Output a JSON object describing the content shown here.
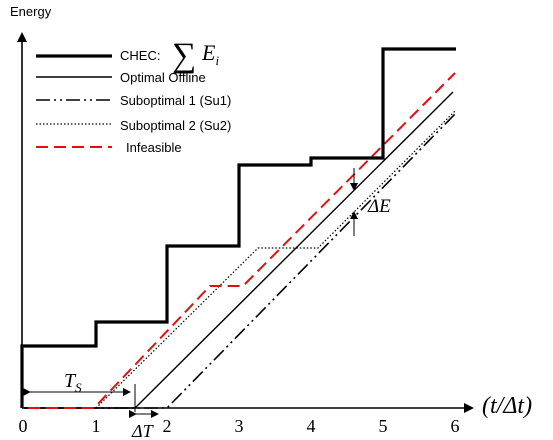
{
  "diagram": {
    "y_axis_label": "Energy",
    "x_axis_label": "(t/Δt)",
    "x_ticks": [
      "0",
      "1",
      "2",
      "3",
      "4",
      "5",
      "6"
    ],
    "legend": [
      {
        "label": "CHEC:",
        "style": "thick-solid",
        "color": "#000000"
      },
      {
        "label": "Optimal Offline",
        "style": "solid",
        "color": "#000000"
      },
      {
        "label": "Suboptimal 1 (Su1)",
        "style": "dash-dot-dot",
        "color": "#000000"
      },
      {
        "label": "Suboptimal 2 (Su2)",
        "style": "dotted",
        "color": "#000000"
      },
      {
        "label": "Infeasible",
        "style": "dashed",
        "color": "#e01010"
      }
    ],
    "chec_formula": {
      "sum_symbol": "∑",
      "var": "E",
      "sub": "i"
    },
    "annotations": {
      "ts_label": "T",
      "ts_sub": "S",
      "delta_t_label": "ΔT",
      "delta_e_label": "ΔE"
    }
  }
}
